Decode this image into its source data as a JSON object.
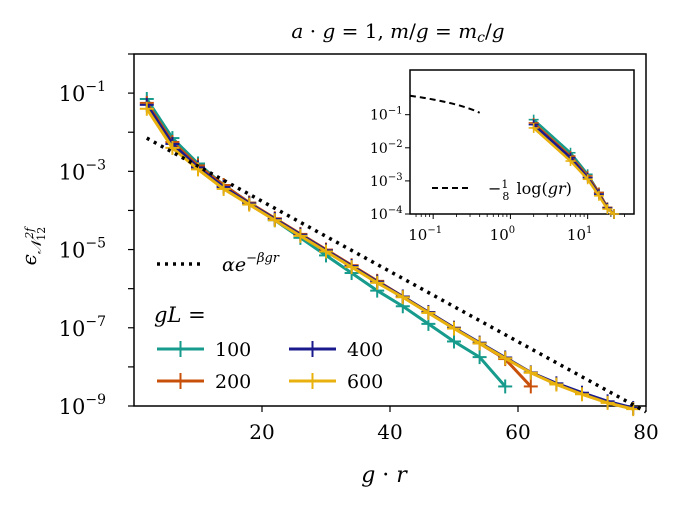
{
  "chart_data": [
    {
      "type": "line",
      "title": "a · g = 1,  m/g = m_c/g",
      "xlabel": "g · r",
      "ylabel": "ε_N12^2f",
      "xlim": [
        0,
        80
      ],
      "ylim_log10": [
        -9,
        0
      ],
      "yscale": "log",
      "x_ticks": [
        {
          "value": 20,
          "label": "20"
        },
        {
          "value": 40,
          "label": "40"
        },
        {
          "value": 60,
          "label": "60"
        },
        {
          "value": 80,
          "label": "80"
        }
      ],
      "y_ticks": [
        {
          "exp": -1,
          "base": "10",
          "sup": "−1"
        },
        {
          "exp": -3,
          "base": "10",
          "sup": "−3"
        },
        {
          "exp": -5,
          "base": "10",
          "sup": "−5"
        },
        {
          "exp": -7,
          "base": "10",
          "sup": "−7"
        },
        {
          "exp": -9,
          "base": "10",
          "sup": "−9"
        }
      ],
      "legend_title": "gL =",
      "series": [
        {
          "name": "100",
          "color": "#169b8c",
          "x": [
            2,
            6,
            10,
            14,
            18,
            22,
            26,
            30,
            34,
            38,
            42,
            46,
            50,
            54,
            58
          ],
          "log10y": [
            -1.15,
            -2.15,
            -2.8,
            -3.35,
            -3.8,
            -4.25,
            -4.7,
            -5.15,
            -5.6,
            -6.05,
            -6.45,
            -6.9,
            -7.35,
            -7.75,
            -8.5
          ]
        },
        {
          "name": "200",
          "color": "#c9500a",
          "x": [
            2,
            6,
            10,
            14,
            18,
            22,
            26,
            30,
            34,
            38,
            42,
            46,
            50,
            54,
            58,
            62
          ],
          "log10y": [
            -1.25,
            -2.25,
            -2.85,
            -3.35,
            -3.8,
            -4.2,
            -4.6,
            -5.0,
            -5.4,
            -5.8,
            -6.2,
            -6.6,
            -7.0,
            -7.4,
            -7.8,
            -8.5
          ]
        },
        {
          "name": "400",
          "color": "#1a1a8c",
          "x": [
            2,
            6,
            10,
            14,
            18,
            22,
            26,
            30,
            34,
            38,
            42,
            46,
            50,
            54,
            58,
            62,
            66,
            70,
            74,
            78
          ],
          "log10y": [
            -1.3,
            -2.3,
            -2.9,
            -3.4,
            -3.82,
            -4.22,
            -4.62,
            -5.02,
            -5.42,
            -5.82,
            -6.2,
            -6.6,
            -7.0,
            -7.38,
            -7.76,
            -8.14,
            -8.42,
            -8.66,
            -8.88,
            -9.05
          ]
        },
        {
          "name": "600",
          "color": "#e8b10e",
          "x": [
            2,
            6,
            10,
            14,
            18,
            22,
            26,
            30,
            34,
            38,
            42,
            46,
            50,
            54,
            58,
            62,
            66,
            70,
            74,
            78
          ],
          "log10y": [
            -1.4,
            -2.4,
            -2.95,
            -3.45,
            -3.85,
            -4.25,
            -4.65,
            -5.05,
            -5.45,
            -5.85,
            -6.22,
            -6.62,
            -7.02,
            -7.4,
            -7.78,
            -8.15,
            -8.45,
            -8.7,
            -8.92,
            -9.08
          ]
        }
      ],
      "fit": {
        "label": "αe^(−βgr)",
        "x": [
          2,
          80
        ],
        "log10y": [
          -2.15,
          -9.15
        ],
        "style": "dotted",
        "color": "#000000"
      }
    },
    {
      "type": "line",
      "role": "inset",
      "xscale": "log",
      "yscale": "log",
      "xlim_log10": [
        -1.3,
        1.6
      ],
      "ylim_log10": [
        -4,
        0.35
      ],
      "x_ticks": [
        {
          "exp": -1,
          "base": "10",
          "sup": "−1"
        },
        {
          "exp": 0,
          "base": "10",
          "sup": "0"
        },
        {
          "exp": 1,
          "base": "10",
          "sup": "1"
        }
      ],
      "y_ticks": [
        {
          "exp": -1,
          "base": "10",
          "sup": "−1"
        },
        {
          "exp": -2,
          "base": "10",
          "sup": "−2"
        },
        {
          "exp": -3,
          "base": "10",
          "sup": "−3"
        },
        {
          "exp": -4,
          "base": "10",
          "sup": "−4"
        }
      ],
      "series": [
        {
          "name": "100",
          "color": "#169b8c",
          "x": [
            2,
            6,
            10,
            14,
            18,
            22
          ],
          "log10y": [
            -1.15,
            -2.15,
            -2.8,
            -3.35,
            -3.8,
            -4.25
          ]
        },
        {
          "name": "200",
          "color": "#c9500a",
          "x": [
            2,
            6,
            10,
            14,
            18,
            22
          ],
          "log10y": [
            -1.25,
            -2.25,
            -2.85,
            -3.35,
            -3.8,
            -4.2
          ]
        },
        {
          "name": "400",
          "color": "#1a1a8c",
          "x": [
            2,
            6,
            10,
            14,
            18,
            22
          ],
          "log10y": [
            -1.3,
            -2.3,
            -2.9,
            -3.4,
            -3.82,
            -4.22
          ]
        },
        {
          "name": "600",
          "color": "#e8b10e",
          "x": [
            2,
            6,
            10,
            14,
            18,
            22
          ],
          "log10y": [
            -1.4,
            -2.4,
            -2.95,
            -3.45,
            -3.85,
            -4.25
          ]
        }
      ],
      "reference": {
        "label": "−(1/8) log(gr)",
        "x": [
          0.05,
          0.4
        ],
        "style": "dashed",
        "color": "#000000"
      }
    }
  ]
}
